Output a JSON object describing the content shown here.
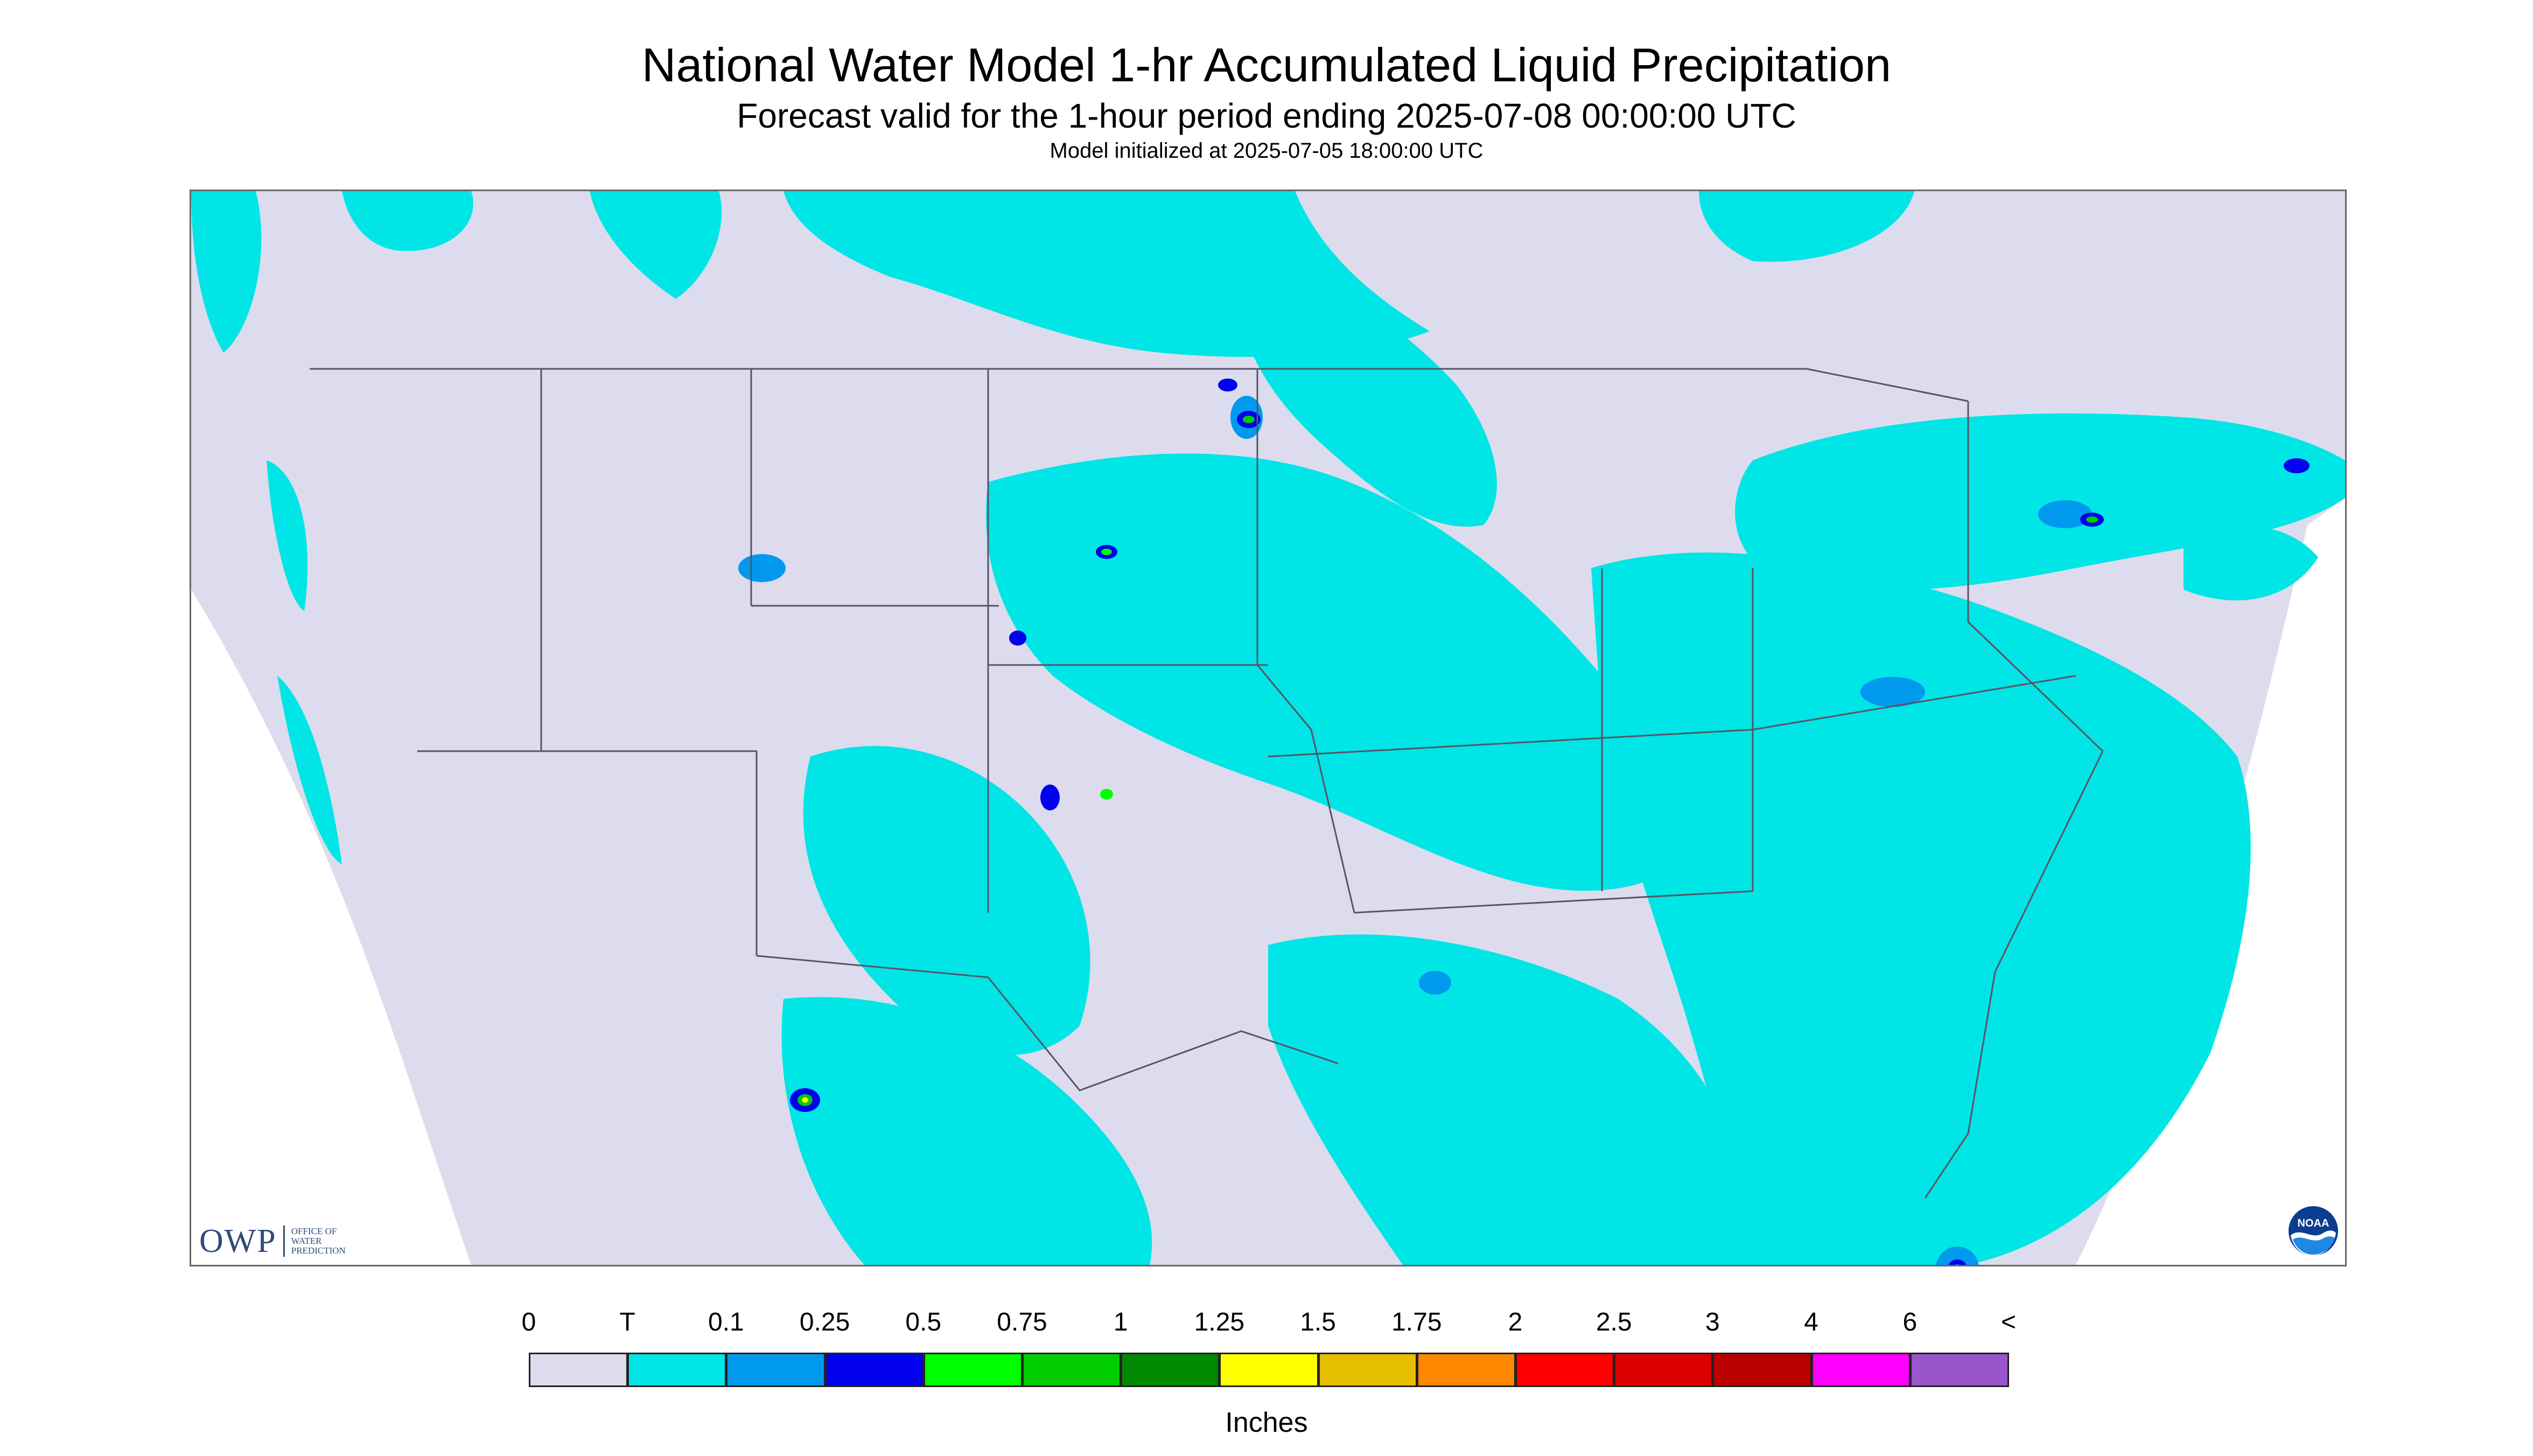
{
  "header": {
    "title": "National Water Model 1-hr Accumulated Liquid Precipitation",
    "subtitle": "Forecast valid for the 1-hour period ending 2025-07-08 00:00:00 UTC",
    "init_line": "Model initialized at 2025-07-05 18:00:00 UTC"
  },
  "map": {
    "background_color": "#dcdcee",
    "border_color": "#333333",
    "outside_color": "#ffffff"
  },
  "logos": {
    "owp_mark": "OWP",
    "owp_sub_1": "OFFICE OF",
    "owp_sub_2": "WATER",
    "owp_sub_3": "PREDICTION",
    "noaa_text": "NOAA"
  },
  "legend": {
    "label": "Inches",
    "ticks": [
      "0",
      "T",
      "0.1",
      "0.25",
      "0.5",
      "0.75",
      "1",
      "1.25",
      "1.5",
      "1.75",
      "2",
      "2.5",
      "3",
      "4",
      "6",
      "<"
    ],
    "colors": [
      "#dcdcee",
      "#00e5e5",
      "#0099ee",
      "#0000ee",
      "#00ff00",
      "#00cc00",
      "#008800",
      "#ffff00",
      "#e5bf00",
      "#ff8800",
      "#ff0000",
      "#dd0000",
      "#bb0000",
      "#ff00ff",
      "#9955cc"
    ]
  }
}
